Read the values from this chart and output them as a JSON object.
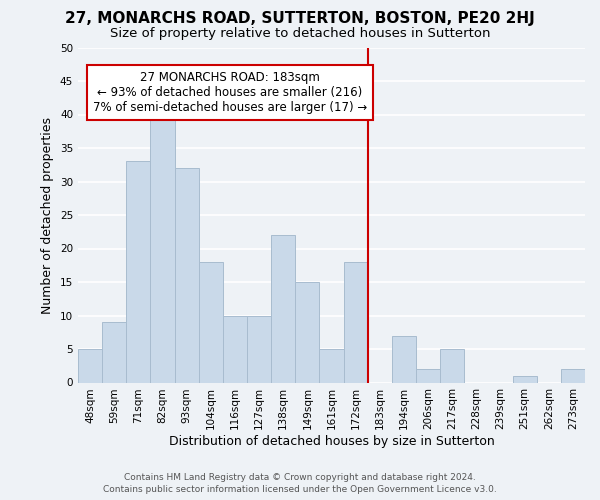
{
  "title": "27, MONARCHS ROAD, SUTTERTON, BOSTON, PE20 2HJ",
  "subtitle": "Size of property relative to detached houses in Sutterton",
  "xlabel": "Distribution of detached houses by size in Sutterton",
  "ylabel": "Number of detached properties",
  "footer_line1": "Contains HM Land Registry data © Crown copyright and database right 2024.",
  "footer_line2": "Contains public sector information licensed under the Open Government Licence v3.0.",
  "bar_labels": [
    "48sqm",
    "59sqm",
    "71sqm",
    "82sqm",
    "93sqm",
    "104sqm",
    "116sqm",
    "127sqm",
    "138sqm",
    "149sqm",
    "161sqm",
    "172sqm",
    "183sqm",
    "194sqm",
    "206sqm",
    "217sqm",
    "228sqm",
    "239sqm",
    "251sqm",
    "262sqm",
    "273sqm"
  ],
  "bar_values": [
    5,
    9,
    33,
    40,
    32,
    18,
    10,
    10,
    22,
    15,
    5,
    18,
    0,
    7,
    2,
    5,
    0,
    0,
    1,
    0,
    2
  ],
  "bar_color": "#c9d9e9",
  "bar_edgecolor": "#a8bccf",
  "vline_color": "#cc0000",
  "annotation_title": "27 MONARCHS ROAD: 183sqm",
  "annotation_line1": "← 93% of detached houses are smaller (216)",
  "annotation_line2": "7% of semi-detached houses are larger (17) →",
  "annotation_box_color": "#ffffff",
  "annotation_box_edgecolor": "#cc0000",
  "ylim": [
    0,
    50
  ],
  "yticks": [
    0,
    5,
    10,
    15,
    20,
    25,
    30,
    35,
    40,
    45,
    50
  ],
  "background_color": "#eef2f6",
  "grid_color": "#ffffff",
  "title_fontsize": 11,
  "subtitle_fontsize": 9.5,
  "axis_label_fontsize": 9,
  "tick_fontsize": 7.5,
  "annotation_fontsize": 8.5,
  "footer_fontsize": 6.5
}
